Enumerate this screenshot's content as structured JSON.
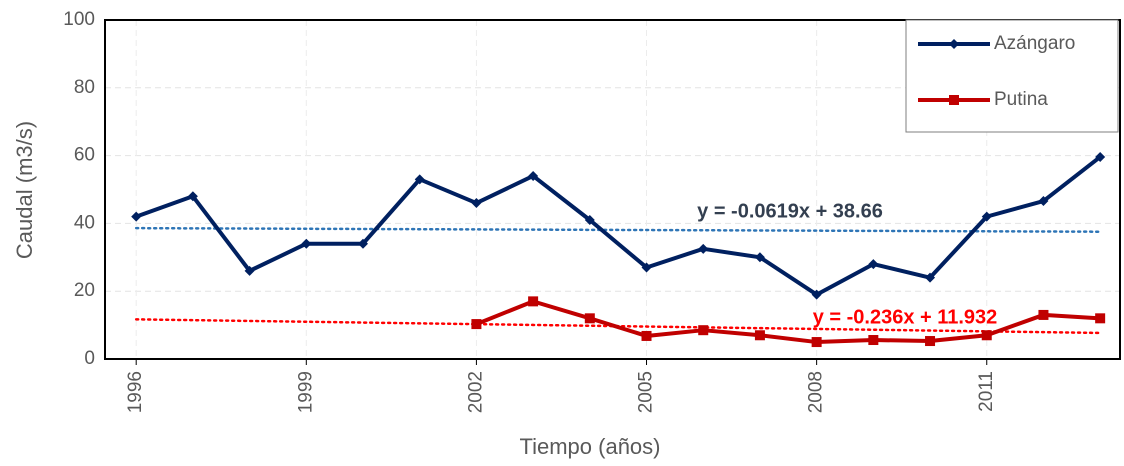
{
  "chart_data": {
    "type": "line",
    "xlabel": "Tiempo (años)",
    "ylabel": "Caudal (m3/s)",
    "x": [
      1996,
      1997,
      1998,
      1999,
      2000,
      2001,
      2002,
      2003,
      2004,
      2005,
      2006,
      2007,
      2008,
      2009,
      2010,
      2011,
      2012,
      2013
    ],
    "series": [
      {
        "name": "Azángaro",
        "color": "#002060",
        "marker": "diamond",
        "values": [
          42,
          48,
          26,
          34,
          34,
          53,
          46,
          54,
          41,
          27,
          32.5,
          30,
          19,
          28,
          24,
          42,
          46.6,
          59.6
        ]
      },
      {
        "name": "Putina",
        "color": "#c00000",
        "marker": "square",
        "values": [
          null,
          null,
          null,
          null,
          null,
          null,
          10.3,
          17,
          12,
          6.8,
          8.5,
          7,
          5,
          5.6,
          5.3,
          7,
          13,
          12
        ]
      }
    ],
    "trendlines": [
      {
        "label": "y = -0.0619x + 38.66",
        "slope": -0.0619,
        "intercept": 38.66,
        "color": "#2e75b6",
        "label_color": "#333f50"
      },
      {
        "label": "y = -0.236x + 11.932",
        "slope": -0.236,
        "intercept": 11.932,
        "color": "#ff0000",
        "label_color": "#ff0000"
      }
    ],
    "xlim": [
      1995.45,
      2013.35
    ],
    "xticks": [
      1996,
      1999,
      2002,
      2005,
      2008,
      2011
    ],
    "ylim": [
      0,
      100
    ],
    "yticks": [
      0,
      20,
      40,
      60,
      80,
      100
    ],
    "grid": true,
    "legend": "upper right"
  }
}
